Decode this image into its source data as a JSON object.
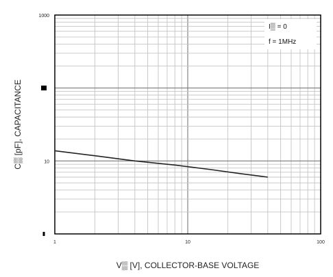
{
  "chart_data": {
    "type": "line",
    "title": "",
    "xlabel": "V▒ [V], COLLECTOR-BASE VOLTAGE",
    "ylabel": "C▒ [pF], CAPACITANCE",
    "xscale": "log",
    "yscale": "log",
    "xlim": [
      1,
      100
    ],
    "ylim": [
      1,
      1000
    ],
    "x_ticks": [
      {
        "value": 1,
        "label": "1"
      },
      {
        "value": 10,
        "label": "10"
      },
      {
        "value": 100,
        "label": "100"
      }
    ],
    "y_ticks": [
      {
        "value": 1000,
        "label": "1000"
      },
      {
        "value": 10,
        "label": "10"
      }
    ],
    "y_tick_blocks": [
      100,
      1
    ],
    "grid": true,
    "legend": {
      "placement": "top-right",
      "lines": [
        "I▒ = 0",
        "f = 1MHz"
      ]
    },
    "series": [
      {
        "x": [
          1,
          2,
          4,
          8,
          15,
          25,
          40
        ],
        "y": [
          13.8,
          11.8,
          10.0,
          8.8,
          7.6,
          6.7,
          6.0
        ]
      }
    ]
  }
}
